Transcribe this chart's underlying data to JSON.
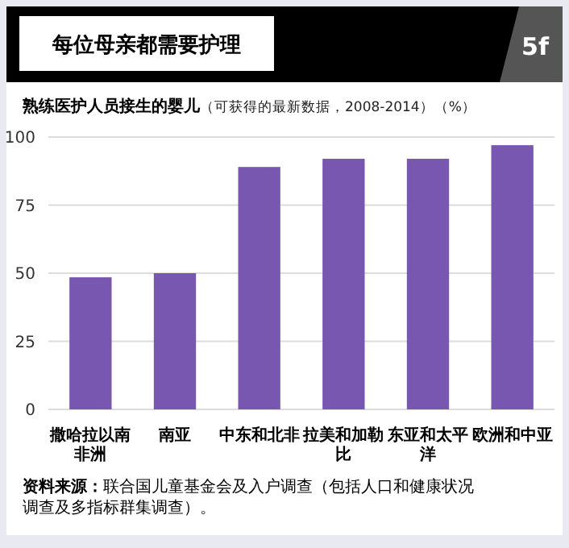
{
  "chart_data": {
    "type": "bar",
    "title": "每位母亲都需要护理",
    "subtitle": "熟练医护人员接生的婴儿（可获得的最新数据，2008-2014）（%）",
    "categories": [
      "撒哈拉以南非洲",
      "南亚",
      "中东和北非",
      "拉美和加勒比",
      "东亚和太平洋",
      "欧洲和中亚"
    ],
    "values": [
      48.5,
      50,
      89,
      92,
      92,
      97
    ],
    "color": "#7857b0",
    "ylim": [
      0,
      100
    ],
    "yticks": [
      0,
      25,
      50,
      75,
      100
    ],
    "grid": "y",
    "annotations": [
      "5f",
      "资料来源：联合国儿童基金会及入户调查（包括人口和健康状况调查及多指标群集调查）。"
    ]
  }
}
